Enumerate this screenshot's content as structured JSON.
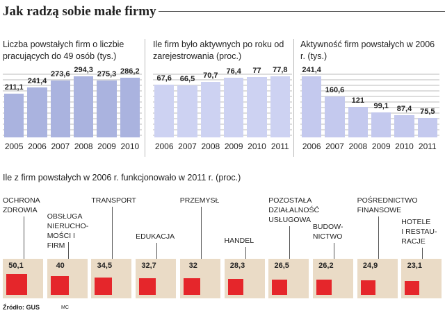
{
  "title": "Jak radzą sobie małe firmy",
  "source": "Źródło: GUS",
  "credit": "MC",
  "chart_data": [
    {
      "type": "bar",
      "title": "Liczba powstałych firm o liczbie pracujących do 49 osób (tys.)",
      "categories": [
        "2005",
        "2006",
        "2007",
        "2008",
        "2009",
        "2010"
      ],
      "values": [
        211.1,
        241.4,
        273.6,
        294.3,
        275.3,
        286.2
      ],
      "value_labels": [
        "211,1",
        "241,4",
        "273,6",
        "294,3",
        "275,3",
        "286,2"
      ],
      "color": "#aab3df"
    },
    {
      "type": "bar",
      "title": "Ile firm było aktywnych po roku od zarejestrowania (proc.)",
      "categories": [
        "2006",
        "2007",
        "2008",
        "2009",
        "2010",
        "2011"
      ],
      "values": [
        67.6,
        66.5,
        70.7,
        76.4,
        77,
        77.8
      ],
      "value_labels": [
        "67,6",
        "66,5",
        "70,7",
        "76,4",
        "77",
        "77,8"
      ],
      "color": "#cdd2f2"
    },
    {
      "type": "bar",
      "title": "Aktywność firm powstałych w 2006 r. (tys.)",
      "categories": [
        "2006",
        "2007",
        "2008",
        "2009",
        "2010",
        "2011"
      ],
      "values": [
        241.4,
        160.6,
        121,
        99.1,
        87.4,
        75.5
      ],
      "value_labels": [
        "241,4",
        "160,6",
        "121",
        "99,1",
        "87,4",
        "75,5"
      ],
      "color": "#c4c9ee"
    },
    {
      "type": "square",
      "title": "Ile z firm powstałych w 2006 r. funkcjonowało w 2011 r. (proc.)",
      "categories": [
        "OCHRONA\nZDROWIA",
        "OBSŁUGA\nNIERUCHO-\nMOŚCI I FIRM",
        "TRANSPORT",
        "EDUKACJA",
        "PRZEMYSŁ",
        "HANDEL",
        "POZOSTAŁA\nDZIAŁALNOŚĆ\nUSŁUGOWA",
        "BUDOW-\nNICTWO",
        "POŚREDNICTWO\nFINANSOWE",
        "HOTELE\nI RESTAU-\nRACJE"
      ],
      "values": [
        50.1,
        40,
        34.5,
        32.7,
        32,
        28.3,
        26.5,
        26.2,
        24.9,
        23.1
      ],
      "value_labels": [
        "50,1",
        "40",
        "34,5",
        "32,7",
        "32",
        "28,3",
        "26,5",
        "26,2",
        "24,9",
        "23,1"
      ],
      "color": "#e5262b",
      "box_color": "#eadbc6"
    }
  ]
}
